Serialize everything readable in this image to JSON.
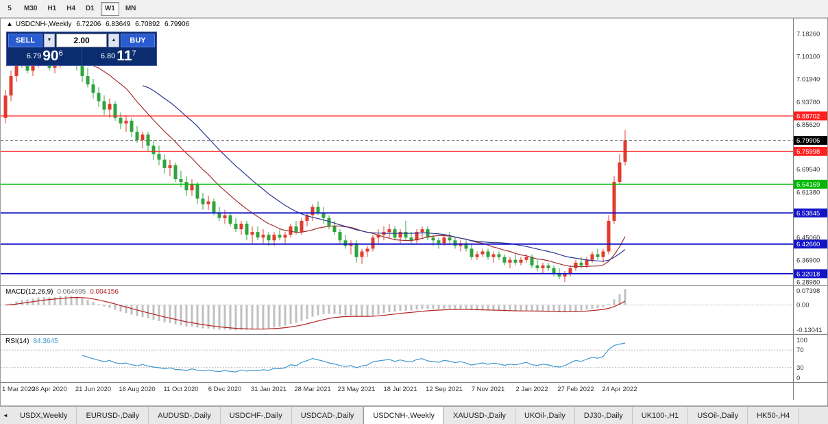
{
  "toolbar": {
    "timeframes": [
      "5",
      "M30",
      "H1",
      "H4",
      "D1",
      "W1",
      "MN"
    ],
    "active": "W1"
  },
  "chart_header": {
    "icon": "▲",
    "symbol": "USDCNH-,Weekly",
    "open": "6.72206",
    "high": "6.83649",
    "low": "6.70892",
    "close": "6.79906"
  },
  "trade_panel": {
    "sell_label": "SELL",
    "buy_label": "BUY",
    "volume": "2.00",
    "spin_down_icon": "▼",
    "spin_up_icon": "▲",
    "sell_price": {
      "prefix": "6.79",
      "big": "90",
      "sup": "6"
    },
    "buy_price": {
      "prefix": "6.80",
      "big": "11",
      "sup": "7"
    }
  },
  "price_axis": {
    "ticks": [
      {
        "v": 7.1826,
        "label": "7.18260"
      },
      {
        "v": 7.101,
        "label": "7.10100"
      },
      {
        "v": 7.0194,
        "label": "7.01940"
      },
      {
        "v": 6.9378,
        "label": "6.93780"
      },
      {
        "v": 6.8562,
        "label": "6.85620"
      },
      {
        "v": 6.6954,
        "label": "6.69540"
      },
      {
        "v": 6.6138,
        "label": "6.61380"
      },
      {
        "v": 6.4506,
        "label": "6.45060"
      },
      {
        "v": 6.369,
        "label": "6.36900"
      },
      {
        "v": 6.2898,
        "label": "6.28980"
      }
    ]
  },
  "colors": {
    "bull": "#e23a2e",
    "bear": "#2fa43c",
    "macd_hist": "#c0c0c0",
    "macd_signal": "#b22222",
    "rsi_line": "#3f97d0"
  },
  "chart_data": {
    "type": "candlestick",
    "symbol": "USDCNH-",
    "timeframe": "Weekly",
    "y_range": [
      6.283,
      7.232
    ],
    "candles_per_tick": 8,
    "x_tick_labels": [
      "1 Mar 2020",
      "26 Apr 2020",
      "21 Jun 2020",
      "16 Aug 2020",
      "11 Oct 2020",
      "6 Dec 2020",
      "31 Jan 2021",
      "28 Mar 2021",
      "23 May 2021",
      "18 Jul 2021",
      "12 Sep 2021",
      "7 Nov 2021",
      "2 Jan 2022",
      "27 Feb 2022",
      "24 Apr 2022"
    ],
    "candles": [
      [
        6.88,
        6.98,
        6.86,
        6.96
      ],
      [
        6.96,
        7.05,
        6.94,
        7.03
      ],
      [
        7.03,
        7.12,
        7.01,
        7.09
      ],
      [
        7.09,
        7.16,
        7.06,
        7.09
      ],
      [
        7.09,
        7.13,
        7.04,
        7.05
      ],
      [
        7.05,
        7.1,
        7.03,
        7.08
      ],
      [
        7.08,
        7.12,
        7.06,
        7.1
      ],
      [
        7.1,
        7.14,
        7.07,
        7.09
      ],
      [
        7.09,
        7.12,
        7.05,
        7.06
      ],
      [
        7.06,
        7.1,
        7.04,
        7.08
      ],
      [
        7.08,
        7.15,
        7.06,
        7.13
      ],
      [
        7.13,
        7.17,
        7.1,
        7.12
      ],
      [
        7.12,
        7.16,
        7.08,
        7.1
      ],
      [
        7.1,
        7.13,
        7.05,
        7.07
      ],
      [
        7.07,
        7.09,
        7.01,
        7.03
      ],
      [
        7.03,
        7.06,
        6.99,
        7.0
      ],
      [
        7.0,
        7.02,
        6.95,
        6.97
      ],
      [
        6.97,
        6.99,
        6.92,
        6.94
      ],
      [
        6.94,
        6.96,
        6.89,
        6.91
      ],
      [
        6.91,
        6.95,
        6.88,
        6.93
      ],
      [
        6.93,
        6.94,
        6.87,
        6.88
      ],
      [
        6.88,
        6.9,
        6.84,
        6.86
      ],
      [
        6.86,
        6.89,
        6.83,
        6.87
      ],
      [
        6.87,
        6.88,
        6.81,
        6.83
      ],
      [
        6.83,
        6.85,
        6.79,
        6.8
      ],
      [
        6.8,
        6.83,
        6.77,
        6.82
      ],
      [
        6.82,
        6.83,
        6.76,
        6.78
      ],
      [
        6.78,
        6.8,
        6.73,
        6.75
      ],
      [
        6.75,
        6.78,
        6.71,
        6.73
      ],
      [
        6.73,
        6.75,
        6.68,
        6.7
      ],
      [
        6.7,
        6.73,
        6.67,
        6.71
      ],
      [
        6.71,
        6.72,
        6.65,
        6.66
      ],
      [
        6.66,
        6.69,
        6.63,
        6.65
      ],
      [
        6.65,
        6.67,
        6.6,
        6.62
      ],
      [
        6.62,
        6.66,
        6.6,
        6.64
      ],
      [
        6.64,
        6.65,
        6.57,
        6.59
      ],
      [
        6.59,
        6.61,
        6.55,
        6.57
      ],
      [
        6.57,
        6.6,
        6.55,
        6.58
      ],
      [
        6.58,
        6.59,
        6.53,
        6.54
      ],
      [
        6.54,
        6.56,
        6.51,
        6.52
      ],
      [
        6.52,
        6.55,
        6.5,
        6.53
      ],
      [
        6.53,
        6.54,
        6.49,
        6.5
      ],
      [
        6.5,
        6.52,
        6.47,
        6.48
      ],
      [
        6.48,
        6.51,
        6.46,
        6.5
      ],
      [
        6.5,
        6.51,
        6.44,
        6.46
      ],
      [
        6.46,
        6.49,
        6.43,
        6.47
      ],
      [
        6.47,
        6.49,
        6.44,
        6.45
      ],
      [
        6.45,
        6.48,
        6.43,
        6.46
      ],
      [
        6.46,
        6.47,
        6.42,
        6.44
      ],
      [
        6.44,
        6.47,
        6.42,
        6.46
      ],
      [
        6.46,
        6.48,
        6.44,
        6.45
      ],
      [
        6.45,
        6.47,
        6.43,
        6.46
      ],
      [
        6.46,
        6.5,
        6.45,
        6.49
      ],
      [
        6.49,
        6.51,
        6.46,
        6.47
      ],
      [
        6.47,
        6.52,
        6.46,
        6.51
      ],
      [
        6.51,
        6.54,
        6.49,
        6.53
      ],
      [
        6.53,
        6.57,
        6.51,
        6.56
      ],
      [
        6.56,
        6.58,
        6.53,
        6.54
      ],
      [
        6.54,
        6.56,
        6.5,
        6.52
      ],
      [
        6.52,
        6.53,
        6.48,
        6.49
      ],
      [
        6.49,
        6.51,
        6.46,
        6.47
      ],
      [
        6.47,
        6.48,
        6.43,
        6.44
      ],
      [
        6.44,
        6.46,
        6.41,
        6.42
      ],
      [
        6.42,
        6.44,
        6.39,
        6.43
      ],
      [
        6.43,
        6.44,
        6.36,
        6.38
      ],
      [
        6.38,
        6.41,
        6.355,
        6.4
      ],
      [
        6.4,
        6.42,
        6.38,
        6.41
      ],
      [
        6.41,
        6.46,
        6.4,
        6.45
      ],
      [
        6.45,
        6.48,
        6.43,
        6.46
      ],
      [
        6.46,
        6.49,
        6.44,
        6.47
      ],
      [
        6.47,
        6.5,
        6.45,
        6.48
      ],
      [
        6.48,
        6.49,
        6.44,
        6.45
      ],
      [
        6.45,
        6.48,
        6.43,
        6.47
      ],
      [
        6.47,
        6.51,
        6.44,
        6.45
      ],
      [
        6.45,
        6.47,
        6.43,
        6.44
      ],
      [
        6.44,
        6.48,
        6.43,
        6.47
      ],
      [
        6.47,
        6.49,
        6.45,
        6.48
      ],
      [
        6.48,
        6.49,
        6.44,
        6.45
      ],
      [
        6.45,
        6.46,
        6.42,
        6.44
      ],
      [
        6.44,
        6.45,
        6.41,
        6.43
      ],
      [
        6.43,
        6.46,
        6.42,
        6.45
      ],
      [
        6.45,
        6.47,
        6.43,
        6.44
      ],
      [
        6.44,
        6.45,
        6.41,
        6.42
      ],
      [
        6.42,
        6.44,
        6.4,
        6.43
      ],
      [
        6.43,
        6.44,
        6.4,
        6.41
      ],
      [
        6.41,
        6.43,
        6.37,
        6.38
      ],
      [
        6.38,
        6.4,
        6.37,
        6.39
      ],
      [
        6.39,
        6.41,
        6.38,
        6.4
      ],
      [
        6.4,
        6.41,
        6.37,
        6.38
      ],
      [
        6.38,
        6.4,
        6.36,
        6.39
      ],
      [
        6.39,
        6.4,
        6.37,
        6.38
      ],
      [
        6.38,
        6.39,
        6.35,
        6.36
      ],
      [
        6.36,
        6.38,
        6.34,
        6.37
      ],
      [
        6.37,
        6.39,
        6.35,
        6.36
      ],
      [
        6.36,
        6.38,
        6.35,
        6.37
      ],
      [
        6.37,
        6.39,
        6.36,
        6.38
      ],
      [
        6.38,
        6.39,
        6.34,
        6.35
      ],
      [
        6.35,
        6.37,
        6.33,
        6.34
      ],
      [
        6.34,
        6.36,
        6.32,
        6.35
      ],
      [
        6.35,
        6.36,
        6.33,
        6.34
      ],
      [
        6.34,
        6.35,
        6.31,
        6.32
      ],
      [
        6.32,
        6.34,
        6.3,
        6.31
      ],
      [
        6.31,
        6.33,
        6.29,
        6.32
      ],
      [
        6.32,
        6.35,
        6.31,
        6.34
      ],
      [
        6.34,
        6.37,
        6.33,
        6.36
      ],
      [
        6.36,
        6.38,
        6.34,
        6.35
      ],
      [
        6.35,
        6.38,
        6.34,
        6.37
      ],
      [
        6.37,
        6.4,
        6.36,
        6.39
      ],
      [
        6.39,
        6.41,
        6.37,
        6.38
      ],
      [
        6.38,
        6.41,
        6.36,
        6.4
      ],
      [
        6.4,
        6.53,
        6.39,
        6.51
      ],
      [
        6.51,
        6.67,
        6.5,
        6.65
      ],
      [
        6.65,
        6.75,
        6.64,
        6.72
      ],
      [
        6.72206,
        6.83649,
        6.70892,
        6.79906
      ]
    ],
    "moving_averages": [
      {
        "period": 13,
        "color": "#a03030"
      },
      {
        "period": 26,
        "color": "#283593"
      }
    ],
    "horizontal_lines": [
      {
        "price": 6.88702,
        "label": "6.88702",
        "color": "#ff2020",
        "width": 1.3
      },
      {
        "price": 6.75998,
        "label": "6.75998",
        "color": "#ff2020",
        "width": 1.3
      },
      {
        "price": 6.64169,
        "label": "6.64169",
        "color": "#00b800",
        "width": 1.6
      },
      {
        "price": 6.53845,
        "label": "6.53845",
        "color": "#1414c8",
        "width": 2
      },
      {
        "price": 6.4266,
        "label": "6.42660",
        "color": "#1414c8",
        "width": 2
      },
      {
        "price": 6.32018,
        "label": "6.32018",
        "color": "#1414c8",
        "width": 2
      }
    ],
    "current_price": 6.79906,
    "current_price_label": "6.79906",
    "macd": {
      "name": "MACD(12,26,9)",
      "value": "0.064695",
      "signal_value": "0.004156",
      "axis": [
        {
          "pos": "top",
          "label": "0.07398"
        },
        {
          "pos": "zero",
          "label": "0.00"
        },
        {
          "pos": "bottom",
          "label": "-0.13041"
        }
      ]
    },
    "rsi": {
      "name": "RSI(14)",
      "value": "84.3645",
      "levels": [
        70,
        30
      ],
      "axis": [
        {
          "v": 100,
          "label": "100"
        },
        {
          "v": 70,
          "label": "70"
        },
        {
          "v": 30,
          "label": "30"
        },
        {
          "v": 0,
          "label": "0"
        }
      ]
    }
  },
  "tabs": {
    "scroll_icon": "◄",
    "items": [
      "USDX,Weekly",
      "EURUSD-,Daily",
      "AUDUSD-,Daily",
      "USDCHF-,Daily",
      "USDCAD-,Daily",
      "USDCNH-,Weekly",
      "XAUUSD-,Daily",
      "UKOil-,Daily",
      "DJ30-,Daily",
      "UK100-,H1",
      "USOil-,Daily",
      "HK50-,H4"
    ],
    "active": "USDCNH-,Weekly"
  }
}
